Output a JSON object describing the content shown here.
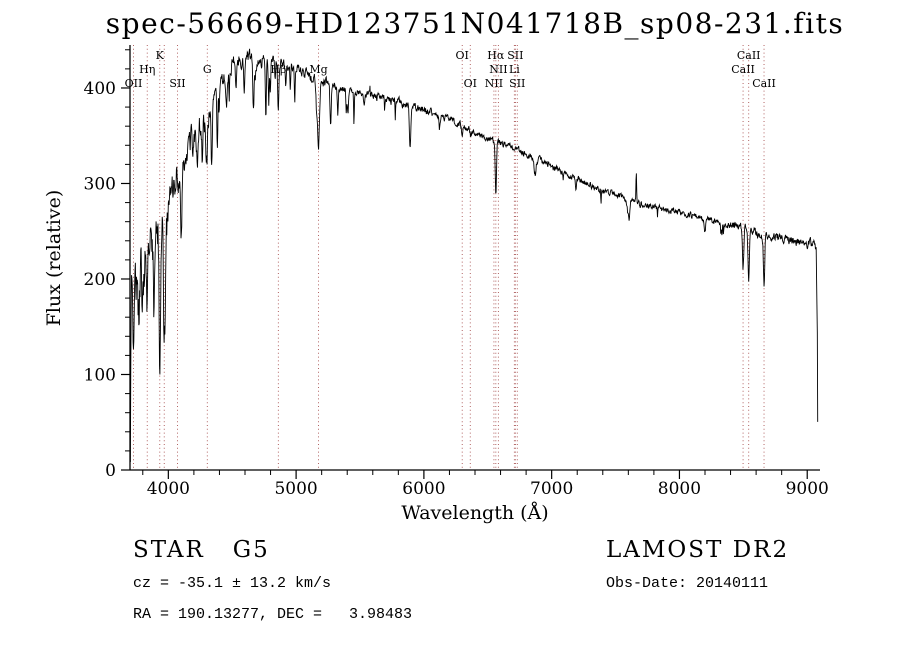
{
  "chart_data": {
    "type": "line",
    "title": "spec-56669-HD123751N041718B_sp08-231.fits",
    "xlabel": "Wavelength (Å)",
    "ylabel": "Flux (relative)",
    "xlim": [
      3700,
      9100
    ],
    "ylim": [
      0,
      445
    ],
    "xticks": [
      4000,
      5000,
      6000,
      7000,
      8000,
      9000
    ],
    "yticks": [
      0,
      100,
      200,
      300,
      400
    ],
    "grid": false,
    "legend": "none",
    "marker_color": "#a04040",
    "line_color": "#000000",
    "continuum": [
      [
        3703,
        8
      ],
      [
        3710,
        180
      ],
      [
        3730,
        192
      ],
      [
        3760,
        203
      ],
      [
        3800,
        213
      ],
      [
        3840,
        224
      ],
      [
        3880,
        238
      ],
      [
        3920,
        250
      ],
      [
        3960,
        262
      ],
      [
        4000,
        278
      ],
      [
        4050,
        299
      ],
      [
        4100,
        317
      ],
      [
        4150,
        334
      ],
      [
        4200,
        349
      ],
      [
        4250,
        361
      ],
      [
        4300,
        372
      ],
      [
        4350,
        384
      ],
      [
        4400,
        399
      ],
      [
        4450,
        413
      ],
      [
        4500,
        424
      ],
      [
        4550,
        429
      ],
      [
        4600,
        431
      ],
      [
        4650,
        430
      ],
      [
        4700,
        428
      ],
      [
        4750,
        429
      ],
      [
        4800,
        430
      ],
      [
        4850,
        428
      ],
      [
        4900,
        427
      ],
      [
        4950,
        424
      ],
      [
        5000,
        420
      ],
      [
        5050,
        416
      ],
      [
        5100,
        413
      ],
      [
        5150,
        409
      ],
      [
        5200,
        406
      ],
      [
        5250,
        404
      ],
      [
        5300,
        402
      ],
      [
        5350,
        400
      ],
      [
        5400,
        398
      ],
      [
        5450,
        397
      ],
      [
        5500,
        396
      ],
      [
        5550,
        394
      ],
      [
        5600,
        392
      ],
      [
        5650,
        390
      ],
      [
        5700,
        388
      ],
      [
        5750,
        386
      ],
      [
        5800,
        385
      ],
      [
        5850,
        383
      ],
      [
        5900,
        381
      ],
      [
        5950,
        380
      ],
      [
        6000,
        378
      ],
      [
        6100,
        372
      ],
      [
        6200,
        366
      ],
      [
        6300,
        360
      ],
      [
        6400,
        353
      ],
      [
        6500,
        347
      ],
      [
        6600,
        342
      ],
      [
        6700,
        337
      ],
      [
        6800,
        331
      ],
      [
        6900,
        325
      ],
      [
        7000,
        318
      ],
      [
        7100,
        311
      ],
      [
        7200,
        305
      ],
      [
        7300,
        299
      ],
      [
        7400,
        293
      ],
      [
        7500,
        288
      ],
      [
        7600,
        283
      ],
      [
        7700,
        279
      ],
      [
        7800,
        275
      ],
      [
        7900,
        272
      ],
      [
        8000,
        269
      ],
      [
        8100,
        266
      ],
      [
        8200,
        263
      ],
      [
        8300,
        260
      ],
      [
        8400,
        256
      ],
      [
        8500,
        252
      ],
      [
        8600,
        248
      ],
      [
        8700,
        245
      ],
      [
        8800,
        243
      ],
      [
        8900,
        241
      ],
      [
        9000,
        238
      ],
      [
        9040,
        236
      ],
      [
        9070,
        233
      ],
      [
        9079,
        150
      ],
      [
        9083,
        20
      ]
    ],
    "absorption_lines": [
      {
        "center": 3727,
        "depth": 35,
        "sigma": 4
      },
      {
        "center": 3770,
        "depth": 45,
        "sigma": 5
      },
      {
        "center": 3798,
        "depth": 55,
        "sigma": 5
      },
      {
        "center": 3835,
        "depth": 70,
        "sigma": 5
      },
      {
        "center": 3889,
        "depth": 65,
        "sigma": 5
      },
      {
        "center": 3933,
        "depth": 130,
        "sigma": 6
      },
      {
        "center": 3968,
        "depth": 110,
        "sigma": 6
      },
      {
        "center": 4101,
        "depth": 75,
        "sigma": 6
      },
      {
        "center": 4227,
        "depth": 50,
        "sigma": 4
      },
      {
        "center": 4300,
        "depth": 45,
        "sigma": 9
      },
      {
        "center": 4340,
        "depth": 65,
        "sigma": 5
      },
      {
        "center": 4383,
        "depth": 55,
        "sigma": 4
      },
      {
        "center": 4455,
        "depth": 30,
        "sigma": 4
      },
      {
        "center": 4530,
        "depth": 30,
        "sigma": 4
      },
      {
        "center": 4668,
        "depth": 25,
        "sigma": 4
      },
      {
        "center": 4861,
        "depth": 48,
        "sigma": 5
      },
      {
        "center": 5175,
        "depth": 70,
        "sigma": 8
      },
      {
        "center": 5270,
        "depth": 40,
        "sigma": 5
      },
      {
        "center": 5405,
        "depth": 25,
        "sigma": 4
      },
      {
        "center": 5892,
        "depth": 42,
        "sigma": 6
      },
      {
        "center": 6122,
        "depth": 15,
        "sigma": 4
      },
      {
        "center": 6300,
        "depth": 14,
        "sigma": 4
      },
      {
        "center": 6563,
        "depth": 55,
        "sigma": 5
      },
      {
        "center": 6870,
        "depth": 18,
        "sigma": 8
      },
      {
        "center": 7190,
        "depth": 10,
        "sigma": 6
      },
      {
        "center": 7600,
        "depth": 16,
        "sigma": 9
      },
      {
        "center": 8200,
        "depth": 12,
        "sigma": 5
      },
      {
        "center": 8498,
        "depth": 42,
        "sigma": 5
      },
      {
        "center": 8542,
        "depth": 58,
        "sigma": 5
      },
      {
        "center": 8662,
        "depth": 52,
        "sigma": 5
      }
    ],
    "emission_spikes": [
      {
        "center": 5578,
        "height": 12,
        "sigma": 2
      },
      {
        "center": 7662,
        "height": 30,
        "sigma": 2.5
      }
    ],
    "noise_regions": [
      {
        "to": 3990,
        "amp": 26
      },
      {
        "to": 4350,
        "amp": 13
      },
      {
        "to": 4700,
        "amp": 7
      },
      {
        "to": 5300,
        "amp": 4.5
      },
      {
        "to": 6300,
        "amp": 3.5
      },
      {
        "to": 7300,
        "amp": 3
      },
      {
        "to": 8400,
        "amp": 2.8
      },
      {
        "to": 9100,
        "amp": 4.2
      }
    ],
    "line_markers": [
      {
        "wavelength": 3727,
        "label": "OII",
        "row": 2
      },
      {
        "wavelength": 3835,
        "label": "Hη",
        "row": 1
      },
      {
        "wavelength": 3933,
        "label": "K",
        "row": 0
      },
      {
        "wavelength": 3968,
        "label": "",
        "row": 0
      },
      {
        "wavelength": 4072,
        "label": "SII",
        "row": 2
      },
      {
        "wavelength": 4305,
        "label": "G",
        "row": 1
      },
      {
        "wavelength": 4861,
        "label": "Hβ",
        "row": 1
      },
      {
        "wavelength": 5175,
        "label": "Mg",
        "row": 1
      },
      {
        "wavelength": 6300,
        "label": "OI",
        "row": 0
      },
      {
        "wavelength": 6363,
        "label": "OI",
        "row": 2
      },
      {
        "wavelength": 6548,
        "label": "NII",
        "row": 2
      },
      {
        "wavelength": 6563,
        "label": "Hα",
        "row": 0
      },
      {
        "wavelength": 6583,
        "label": "NII",
        "row": 1
      },
      {
        "wavelength": 6708,
        "label": "Li",
        "row": 1
      },
      {
        "wavelength": 6716,
        "label": "SII",
        "row": 0
      },
      {
        "wavelength": 6731,
        "label": "SII",
        "row": 2
      },
      {
        "wavelength": 8498,
        "label": "CaII",
        "row": 1
      },
      {
        "wavelength": 8542,
        "label": "CaII",
        "row": 0
      },
      {
        "wavelength": 8662,
        "label": "CaII",
        "row": 2
      }
    ]
  },
  "annotations": {
    "object": "STAR   G5",
    "survey": "LAMOST DR2",
    "cz": "cz = -35.1 ± 13.2 km/s",
    "obs_date": "Obs-Date: 20140111",
    "coordinates": "RA = 190.13277, DEC =   3.98483"
  }
}
